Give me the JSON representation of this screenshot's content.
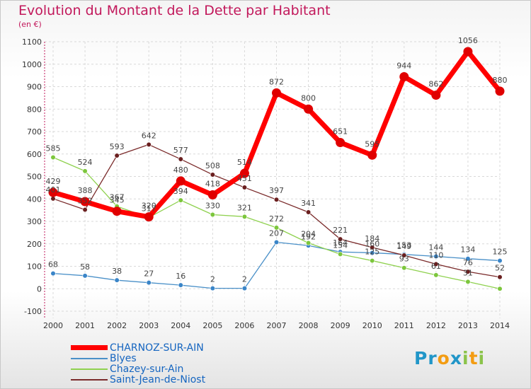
{
  "title": "Evolution du Montant de la Dette par Habitant",
  "subtitle": "(en €)",
  "logo": {
    "parts": [
      {
        "text": "Pr",
        "color": "#2196c8"
      },
      {
        "text": "o",
        "color": "#f39c12"
      },
      {
        "text": "x",
        "color": "#2196c8"
      },
      {
        "text": "i",
        "color": "#8bc34a"
      },
      {
        "text": "t",
        "color": "#f39c12"
      },
      {
        "text": "i",
        "color": "#8bc34a"
      }
    ]
  },
  "chart_data": {
    "type": "line",
    "x": [
      2000,
      2001,
      2002,
      2003,
      2004,
      2005,
      2006,
      2007,
      2008,
      2009,
      2010,
      2011,
      2012,
      2013,
      2014
    ],
    "ylim": [
      -100,
      1100
    ],
    "yticks": [
      -100,
      0,
      100,
      200,
      300,
      400,
      500,
      600,
      700,
      800,
      900,
      1000,
      1100
    ],
    "grid": true,
    "legend_position": "bottom",
    "series": [
      {
        "name": "CHARNOZ-SUR-AIN",
        "color": "#ff0000",
        "marker": "#e00000",
        "width": 7,
        "values": [
          429,
          388,
          345,
          320,
          480,
          418,
          514,
          872,
          800,
          651,
          595,
          944,
          862,
          1056,
          880
        ],
        "labels": [
          "429",
          "388",
          "345",
          "320",
          "480",
          "418",
          "514",
          "872",
          "800",
          "651",
          "595",
          "944",
          "862",
          "1056",
          "880"
        ]
      },
      {
        "name": "Blyes",
        "color": "#4a90c8",
        "marker": "#3a85c8",
        "width": 1.3,
        "values": [
          68,
          58,
          38,
          27,
          16,
          2,
          2,
          207,
          192,
          164,
          160,
          153,
          144,
          134,
          125
        ],
        "labels": [
          "68",
          "58",
          "38",
          "27",
          "16",
          "2",
          "2",
          "207",
          "192",
          "164",
          "160",
          "153",
          "144",
          "134",
          "125"
        ]
      },
      {
        "name": "Chazey-sur-Ain",
        "color": "#8fd14f",
        "marker": "#7cc63c",
        "width": 1.3,
        "values": [
          585,
          524,
          367,
          317,
          394,
          330,
          321,
          272,
          204,
          154,
          125,
          93,
          61,
          31,
          0
        ],
        "labels": [
          "585",
          "524",
          "367",
          "317",
          "394",
          "330",
          "321",
          "272",
          "204",
          "154",
          "125",
          "93",
          "61",
          "31",
          ""
        ]
      },
      {
        "name": "Saint-Jean-de-Niost",
        "color": "#7a2a2a",
        "marker": "#6a1f1f",
        "width": 1.3,
        "values": [
          401,
          352,
          593,
          642,
          577,
          508,
          451,
          397,
          341,
          221,
          184,
          149,
          110,
          76,
          52
        ],
        "labels": [
          "401",
          "352",
          "593",
          "642",
          "577",
          "508",
          "451",
          "397",
          "341",
          "221",
          "184",
          "149",
          "110",
          "76",
          "52"
        ]
      }
    ]
  }
}
